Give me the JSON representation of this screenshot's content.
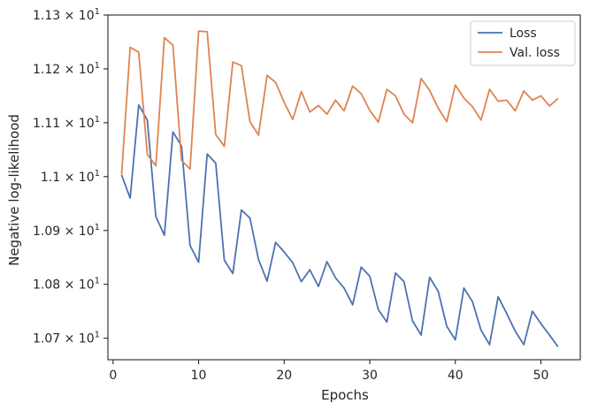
{
  "chart_data": {
    "type": "line",
    "xlabel": "Epochs",
    "ylabel": "Negative log-likelihood",
    "xlim": [
      -0.6,
      54.6
    ],
    "ylim": [
      10.66,
      11.3
    ],
    "x_ticks": [
      0,
      10,
      20,
      30,
      40,
      50
    ],
    "y_ticks": [
      {
        "value": 10.7,
        "base": "1.07",
        "exp": "1"
      },
      {
        "value": 10.8,
        "base": "1.08",
        "exp": "1"
      },
      {
        "value": 10.9,
        "base": "1.09",
        "exp": "1"
      },
      {
        "value": 11.0,
        "base": "1.1",
        "exp": "1"
      },
      {
        "value": 11.1,
        "base": "1.11",
        "exp": "1"
      },
      {
        "value": 11.2,
        "base": "1.12",
        "exp": "1"
      },
      {
        "value": 11.3,
        "base": "1.13",
        "exp": "1"
      }
    ],
    "times_sign": "×",
    "base_ten": "10",
    "grid": false,
    "legend_position": "top-right",
    "x": [
      1,
      2,
      3,
      4,
      5,
      6,
      7,
      8,
      9,
      10,
      11,
      12,
      13,
      14,
      15,
      16,
      17,
      18,
      19,
      20,
      21,
      22,
      23,
      24,
      25,
      26,
      27,
      28,
      29,
      30,
      31,
      32,
      33,
      34,
      35,
      36,
      37,
      38,
      39,
      40,
      41,
      42,
      43,
      44,
      45,
      46,
      47,
      48,
      49,
      50,
      51,
      52
    ],
    "series": [
      {
        "name": "Loss",
        "color": "#4c72b0",
        "values": [
          11.003,
          10.96,
          11.133,
          11.105,
          10.926,
          10.891,
          11.083,
          11.057,
          10.872,
          10.841,
          11.042,
          11.025,
          10.845,
          10.82,
          10.938,
          10.923,
          10.846,
          10.806,
          10.878,
          10.86,
          10.84,
          10.805,
          10.827,
          10.796,
          10.842,
          10.812,
          10.793,
          10.762,
          10.832,
          10.815,
          10.753,
          10.73,
          10.821,
          10.805,
          10.732,
          10.706,
          10.813,
          10.787,
          10.722,
          10.697,
          10.793,
          10.768,
          10.715,
          10.688,
          10.777,
          10.746,
          10.713,
          10.688,
          10.75,
          10.727,
          10.706,
          10.684
        ]
      },
      {
        "name": "Val. loss",
        "color": "#dd8452",
        "values": [
          11.004,
          11.24,
          11.231,
          11.041,
          11.02,
          11.258,
          11.244,
          11.03,
          11.014,
          11.27,
          11.269,
          11.078,
          11.056,
          11.213,
          11.206,
          11.102,
          11.077,
          11.188,
          11.175,
          11.138,
          11.106,
          11.158,
          11.12,
          11.132,
          11.116,
          11.142,
          11.122,
          11.168,
          11.154,
          11.123,
          11.101,
          11.162,
          11.15,
          11.116,
          11.1,
          11.182,
          11.16,
          11.127,
          11.102,
          11.17,
          11.146,
          11.13,
          11.105,
          11.162,
          11.14,
          11.142,
          11.122,
          11.159,
          11.142,
          11.15,
          11.131,
          11.145
        ]
      }
    ]
  }
}
